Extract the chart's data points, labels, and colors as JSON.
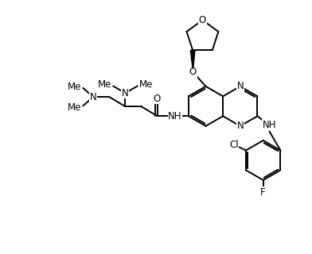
{
  "background_color": "#ffffff",
  "line_color": "#000000",
  "line_width": 1.4,
  "font_size": 8.5,
  "fig_width": 3.92,
  "fig_height": 3.2,
  "dpi": 100,
  "xlim": [
    0,
    9.0
  ],
  "ylim": [
    0,
    7.8
  ]
}
